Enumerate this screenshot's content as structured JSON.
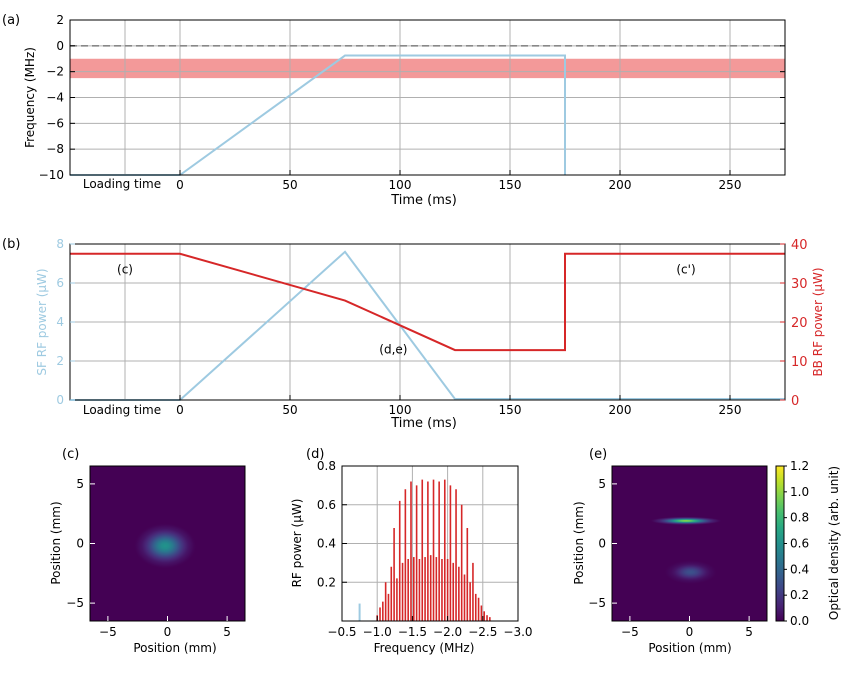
{
  "colors": {
    "sf_blue": "#9ecae1",
    "bb_red": "#d62728",
    "band": "#f08080",
    "dash": "#888888",
    "grid": "#b0b0b0"
  },
  "chart_data": [
    {
      "id": "a",
      "type": "line",
      "panel_label": "(a)",
      "xlabel": "Time (ms)",
      "ylabel": "Frequency (MHz)",
      "xlim": [
        -50,
        275
      ],
      "ylim": [
        -10,
        2
      ],
      "xticks": [
        0,
        50,
        100,
        150,
        200,
        250
      ],
      "xtick_labels": [
        "0",
        "50",
        "100",
        "150",
        "200",
        "250"
      ],
      "yticks": [
        -10,
        -8,
        -6,
        -4,
        -2,
        0,
        2
      ],
      "ytick_labels": [
        "−10",
        "−8",
        "−6",
        "−4",
        "−2",
        "0",
        "2"
      ],
      "extra_xlabel": "Loading time",
      "band": {
        "y0": -2.5,
        "y1": -1.0
      },
      "reference_line": 0,
      "series": [
        {
          "name": "SF frequency",
          "x": [
            -50,
            0,
            75,
            175,
            175
          ],
          "y": [
            -10,
            -10,
            -0.75,
            -0.75,
            -10
          ]
        }
      ]
    },
    {
      "id": "b",
      "type": "line",
      "panel_label": "(b)",
      "xlabel": "Time (ms)",
      "ylabel_left": "SF RF power (μW)",
      "ylabel_right": "BB RF power (μW)",
      "xlim": [
        -50,
        275
      ],
      "ylim_left": [
        0,
        8
      ],
      "ylim_right": [
        0,
        40
      ],
      "xticks": [
        0,
        50,
        100,
        150,
        200,
        250
      ],
      "xtick_labels": [
        "0",
        "50",
        "100",
        "150",
        "200",
        "250"
      ],
      "yticks_left": [
        0,
        2,
        4,
        6,
        8
      ],
      "ytick_labels_left": [
        "0",
        "2",
        "4",
        "6",
        "8"
      ],
      "yticks_right": [
        0,
        10,
        20,
        30,
        40
      ],
      "ytick_labels_right": [
        "0",
        "10",
        "20",
        "30",
        "40"
      ],
      "extra_xlabel": "Loading time",
      "annotations": [
        {
          "text": "(c)",
          "x": -25,
          "y_right": 35
        },
        {
          "text": "(d,e)",
          "x": 97,
          "y_right": 14.5
        },
        {
          "text": "(c')",
          "x": 230,
          "y_right": 35
        }
      ],
      "series": [
        {
          "name": "SF RF power",
          "axis": "left",
          "x": [
            -50,
            0,
            75,
            125,
            275
          ],
          "y": [
            0,
            0,
            7.6,
            0.05,
            0.05
          ]
        },
        {
          "name": "BB RF power",
          "axis": "right",
          "x": [
            -50,
            0,
            75,
            125,
            175,
            175,
            275
          ],
          "y": [
            37.5,
            37.5,
            25.5,
            12.8,
            12.8,
            37.5,
            37.5
          ]
        }
      ]
    },
    {
      "id": "c",
      "type": "heatmap",
      "panel_label": "(c)",
      "xlabel": "Position (mm)",
      "ylabel": "Position (mm)",
      "xlim": [
        -6.5,
        6.5
      ],
      "ylim": [
        -6.5,
        6.5
      ],
      "xticks": [
        -5,
        0,
        5
      ],
      "xtick_labels": [
        "−5",
        "0",
        "5"
      ],
      "yticks": [
        -5,
        0,
        5
      ],
      "ytick_labels": [
        "−5",
        "0",
        "5"
      ],
      "blobs": [
        {
          "x": -0.2,
          "y": -0.2,
          "sx": 2.6,
          "sy": 1.9,
          "amp": 0.62
        }
      ]
    },
    {
      "id": "d",
      "type": "bar",
      "panel_label": "(d)",
      "xlabel": "Frequency (MHz)",
      "ylabel": "RF power (μW)",
      "xlim": [
        -0.5,
        -3.0
      ],
      "ylim": [
        0,
        0.8
      ],
      "xticks": [
        -0.5,
        -1.0,
        -1.5,
        -2.0,
        -2.5,
        -3.0
      ],
      "xtick_labels": [
        "−0.5",
        "−1.0",
        "−1.5",
        "−2.0",
        "−2.5",
        "−3.0"
      ],
      "yticks": [
        0.2,
        0.4,
        0.6,
        0.8
      ],
      "ytick_labels": [
        "0.2",
        "0.4",
        "0.6",
        "0.8"
      ],
      "sf_peak": {
        "x": -0.75,
        "y": 0.09
      },
      "bb_peaks_x": [
        -1.0,
        -1.04,
        -1.08,
        -1.12,
        -1.16,
        -1.2,
        -1.24,
        -1.28,
        -1.32,
        -1.36,
        -1.4,
        -1.44,
        -1.48,
        -1.52,
        -1.56,
        -1.6,
        -1.64,
        -1.68,
        -1.72,
        -1.76,
        -1.8,
        -1.84,
        -1.88,
        -1.92,
        -1.96,
        -2.0,
        -2.04,
        -2.08,
        -2.12,
        -2.16,
        -2.2,
        -2.24,
        -2.28,
        -2.32,
        -2.36,
        -2.4,
        -2.44,
        -2.48,
        -2.52,
        -2.56,
        -2.6
      ],
      "bb_peaks_y": [
        0.03,
        0.07,
        0.1,
        0.2,
        0.14,
        0.28,
        0.48,
        0.22,
        0.62,
        0.3,
        0.68,
        0.32,
        0.72,
        0.33,
        0.7,
        0.32,
        0.73,
        0.33,
        0.72,
        0.34,
        0.73,
        0.33,
        0.72,
        0.32,
        0.73,
        0.32,
        0.7,
        0.3,
        0.68,
        0.28,
        0.6,
        0.24,
        0.48,
        0.2,
        0.3,
        0.14,
        0.12,
        0.08,
        0.05,
        0.03,
        0.02
      ]
    },
    {
      "id": "e",
      "type": "heatmap",
      "panel_label": "(e)",
      "xlabel": "Position (mm)",
      "ylabel": "Position (mm)",
      "xlim": [
        -6.5,
        6.5
      ],
      "ylim": [
        -6.5,
        6.5
      ],
      "xticks": [
        -5,
        0,
        5
      ],
      "xtick_labels": [
        "−5",
        "0",
        "5"
      ],
      "yticks": [
        -5,
        0,
        5
      ],
      "ytick_labels": [
        "−5",
        "0",
        "5"
      ],
      "blobs": [
        {
          "x": -0.3,
          "y": 1.9,
          "sx": 3.0,
          "sy": 0.35,
          "amp": 1.0
        },
        {
          "x": 0.1,
          "y": -2.4,
          "sx": 2.2,
          "sy": 1.0,
          "amp": 0.3
        }
      ],
      "colorbar": {
        "label": "Optical density (arb. unit)",
        "range": [
          0,
          1.2
        ],
        "ticks": [
          0.0,
          0.2,
          0.4,
          0.6,
          0.8,
          1.0,
          1.2
        ],
        "tick_labels": [
          "0.0",
          "0.2",
          "0.4",
          "0.6",
          "0.8",
          "1.0",
          "1.2"
        ]
      }
    }
  ]
}
